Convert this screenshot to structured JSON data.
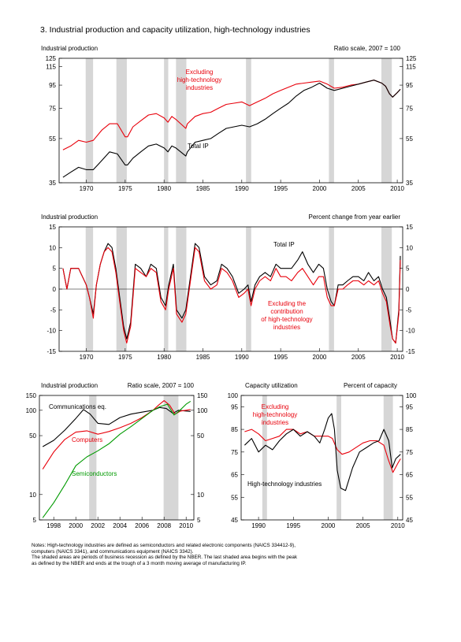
{
  "figure": {
    "title": "3.  Industrial production and capacity utilization, high-technology industries"
  },
  "notes": [
    "Notes:  High-technology industries are defined as semiconductors and related electronic components (NAICS 334412-9),",
    "computers (NAICS 3341), and communications equipment (NAICS 3342).",
    "   The shaded areas are periods of business recession as defined by the NBER. The last shaded area begins with the peak",
    "as defined by the NBER and ends at the trough of a 3 month moving average of manufacturing IP."
  ],
  "recessions": [
    [
      1969.92,
      1970.87
    ],
    [
      1973.87,
      1975.21
    ],
    [
      1980.0,
      1980.54
    ],
    [
      1981.54,
      1982.87
    ],
    [
      1990.54,
      1991.21
    ],
    [
      2001.21,
      2001.87
    ],
    [
      2007.96,
      2009.3
    ]
  ],
  "colors": {
    "red": "#e8000b",
    "black": "#000000",
    "green": "#009a00",
    "shade": "#d6d6d6"
  },
  "chart_data": [
    {
      "type": "line",
      "y_scale": "log",
      "left_label": "Industrial production",
      "right_label": "Ratio scale, 2007 = 100",
      "xlim": [
        1966.5,
        2010.7
      ],
      "ylim": [
        35,
        125
      ],
      "x_ticks": [
        "1970",
        "1975",
        "1980",
        "1985",
        "1990",
        "1995",
        "2000",
        "2005",
        "2010"
      ],
      "y_ticks": [
        "35",
        "55",
        "75",
        "95",
        "115",
        "125"
      ],
      "annotations": [
        "Excluding",
        "high-technology",
        "industries",
        "Total IP"
      ],
      "series": [
        {
          "color": "red",
          "x": [
            1967,
            1968,
            1969,
            1970,
            1970.9,
            1972,
            1973,
            1974,
            1975,
            1975.3,
            1976,
            1977,
            1978,
            1979,
            1980,
            1980.5,
            1981,
            1981.5,
            1982.8,
            1983,
            1984,
            1985,
            1986,
            1987,
            1988,
            1989,
            1990,
            1991,
            1992,
            1993,
            1994,
            1995,
            1996,
            1997,
            1998,
            1999,
            2000,
            2001,
            2001.9,
            2003,
            2004,
            2005,
            2006,
            2007,
            2008,
            2008.5,
            2009,
            2009.4,
            2010,
            2010.4
          ],
          "values": [
            49,
            51,
            54,
            53,
            54,
            60,
            64,
            64,
            56,
            56,
            62,
            66,
            70,
            71,
            68,
            65,
            69,
            67,
            61,
            64,
            69,
            71,
            72,
            75,
            78,
            79,
            80,
            77,
            80,
            83,
            87,
            90,
            93,
            96,
            97,
            98,
            99,
            96,
            92,
            93,
            95,
            96,
            98,
            100,
            97,
            94,
            87,
            84,
            88,
            91
          ]
        },
        {
          "color": "black",
          "x": [
            1967,
            1968,
            1969,
            1970,
            1970.9,
            1972,
            1973,
            1974,
            1975,
            1975.3,
            1976,
            1977,
            1978,
            1979,
            1980,
            1980.5,
            1981,
            1981.5,
            1982.8,
            1983,
            1984,
            1985,
            1986,
            1987,
            1988,
            1989,
            1990,
            1991,
            1992,
            1993,
            1994,
            1995,
            1996,
            1997,
            1998,
            1999,
            2000,
            2001,
            2001.9,
            2003,
            2004,
            2005,
            2006,
            2007,
            2008,
            2008.5,
            2009,
            2009.4,
            2010,
            2010.4
          ],
          "values": [
            37,
            39,
            41,
            40,
            40,
            44,
            48,
            47,
            42,
            42,
            45,
            48,
            51,
            52,
            50,
            48,
            51,
            50,
            46,
            48,
            53,
            54,
            55,
            58,
            61,
            62,
            63,
            62,
            64,
            67,
            71,
            75,
            79,
            85,
            90,
            93,
            97,
            92,
            90,
            92,
            94,
            96,
            98,
            100,
            97,
            94,
            87,
            84,
            88,
            91
          ]
        }
      ]
    },
    {
      "type": "line",
      "left_label": "Industrial production",
      "right_label": "Percent change from year earlier",
      "xlim": [
        1966.5,
        2010.7
      ],
      "ylim": [
        -15,
        15
      ],
      "x_ticks": [
        "1970",
        "1975",
        "1980",
        "1985",
        "1990",
        "1995",
        "2000",
        "2005",
        "2010"
      ],
      "y_ticks": [
        "-15",
        "-10",
        "-5",
        "0",
        "5",
        "10",
        "15"
      ],
      "annotations": [
        "Total IP",
        "Excluding the",
        "contribution",
        "of high-technology",
        "industries"
      ],
      "series": [
        {
          "color": "black",
          "x": [
            1967,
            1967.5,
            1968,
            1969,
            1970,
            1970.4,
            1970.9,
            1971.3,
            1971.8,
            1972.3,
            1972.8,
            1973.3,
            1973.8,
            1974.3,
            1974.8,
            1975.2,
            1975.7,
            1976.3,
            1977,
            1977.7,
            1978.3,
            1979,
            1979.6,
            1980.2,
            1980.6,
            1981.2,
            1981.6,
            1982.3,
            1982.8,
            1983.4,
            1984,
            1984.5,
            1985.2,
            1986,
            1986.8,
            1987.4,
            1988.1,
            1988.8,
            1989.6,
            1990.3,
            1990.8,
            1991.2,
            1991.7,
            1992.3,
            1993,
            1993.7,
            1994.4,
            1995,
            1995.7,
            1996.4,
            1997.2,
            1997.8,
            1998.5,
            1999.2,
            1999.9,
            2000.5,
            2001,
            2001.5,
            2001.9,
            2002.4,
            2003,
            2003.6,
            2004.3,
            2005,
            2005.7,
            2006.3,
            2007,
            2007.6,
            2008.1,
            2008.6,
            2009.1,
            2009.4,
            2009.8,
            2010.2,
            2010.4
          ],
          "values": [
            5,
            0,
            5,
            5,
            1,
            -2,
            -6,
            1,
            6,
            9,
            11,
            10,
            5,
            -2,
            -9,
            -12,
            -8,
            6,
            5,
            3,
            6,
            5,
            -2,
            -4,
            1,
            6,
            -5,
            -7,
            -5,
            3,
            11,
            10,
            3,
            1,
            2,
            6,
            5,
            3,
            -1,
            0,
            1,
            -3,
            1,
            3,
            4,
            3,
            6,
            5,
            5,
            5,
            7,
            9,
            6,
            4,
            6,
            5,
            0,
            -3,
            -4,
            1,
            1,
            2,
            3,
            3,
            2,
            4,
            2,
            3,
            0,
            -2,
            -8,
            -12,
            -13,
            -5,
            8
          ]
        },
        {
          "color": "red",
          "x": [
            1967,
            1967.5,
            1968,
            1969,
            1970,
            1970.4,
            1970.9,
            1971.3,
            1971.8,
            1972.3,
            1972.8,
            1973.3,
            1973.8,
            1974.3,
            1974.8,
            1975.2,
            1975.7,
            1976.3,
            1977,
            1977.7,
            1978.3,
            1979,
            1979.6,
            1980.2,
            1980.6,
            1981.2,
            1981.6,
            1982.3,
            1982.8,
            1983.4,
            1984,
            1984.5,
            1985.2,
            1986,
            1986.8,
            1987.4,
            1988.1,
            1988.8,
            1989.6,
            1990.3,
            1990.8,
            1991.2,
            1991.7,
            1992.3,
            1993,
            1993.7,
            1994.4,
            1995,
            1995.7,
            1996.4,
            1997.2,
            1997.8,
            1998.5,
            1999.2,
            1999.9,
            2000.5,
            2001,
            2001.5,
            2001.9,
            2002.4,
            2003,
            2003.6,
            2004.3,
            2005,
            2005.7,
            2006.3,
            2007,
            2007.6,
            2008.1,
            2008.6,
            2009.1,
            2009.4,
            2009.8,
            2010.2,
            2010.4
          ],
          "values": [
            5,
            0,
            5,
            5,
            1,
            -2,
            -7,
            1,
            6,
            9,
            10,
            9,
            4,
            -3,
            -10,
            -13,
            -9,
            5,
            4,
            3,
            5,
            4,
            -3,
            -5,
            0,
            5,
            -6,
            -8,
            -6,
            2,
            10,
            9,
            2,
            0,
            1,
            5,
            4,
            2,
            -2,
            -1,
            0,
            -4,
            0,
            2,
            3,
            2,
            5,
            3,
            3,
            2,
            4,
            5,
            3,
            1,
            3,
            3,
            -2,
            -4,
            -4,
            0,
            0,
            1,
            2,
            2,
            1,
            2,
            1,
            2,
            -1,
            -3,
            -9,
            -12,
            -13,
            -6,
            7
          ]
        }
      ]
    },
    {
      "type": "line",
      "y_scale": "log",
      "left_label": "Industrial production",
      "right_label": "Ratio scale, 2007 = 100",
      "xlim": [
        1996.7,
        2010.7
      ],
      "ylim": [
        5,
        150
      ],
      "x_ticks": [
        "1998",
        "2000",
        "2002",
        "2004",
        "2006",
        "2008",
        "2010"
      ],
      "y_ticks": [
        "5",
        "10",
        "50",
        "100",
        "150"
      ],
      "annotations": [
        "Communications eq.",
        "Computers",
        "Semiconductors"
      ],
      "series": [
        {
          "color": "black",
          "x": [
            1997,
            1998,
            1999,
            2000,
            2000.7,
            2001.3,
            2002,
            2003,
            2004,
            2005,
            2006,
            2007,
            2007.6,
            2008.2,
            2008.8,
            2009.3,
            2010,
            2010.4
          ],
          "values": [
            37,
            44,
            58,
            80,
            102,
            90,
            70,
            68,
            82,
            90,
            95,
            100,
            108,
            105,
            92,
            100,
            98,
            97
          ]
        },
        {
          "color": "red",
          "x": [
            1997,
            1998,
            1999,
            2000,
            2001,
            2002,
            2003,
            2004,
            2005,
            2006,
            2007,
            2007.5,
            2008,
            2008.5,
            2009,
            2009.5,
            2010,
            2010.4
          ],
          "values": [
            20,
            32,
            45,
            55,
            57,
            52,
            56,
            62,
            70,
            82,
            100,
            115,
            130,
            115,
            90,
            98,
            100,
            102
          ]
        },
        {
          "color": "green",
          "x": [
            1997,
            1998,
            1999,
            2000,
            2001,
            2002,
            2003,
            2004,
            2005,
            2006,
            2007,
            2007.6,
            2008.3,
            2008.9,
            2009.3,
            2010,
            2010.4
          ],
          "values": [
            5.3,
            8,
            13,
            22,
            28,
            33,
            40,
            52,
            64,
            80,
            100,
            110,
            118,
            88,
            96,
            118,
            128
          ]
        }
      ]
    },
    {
      "type": "line",
      "left_label": "Capacity utilization",
      "right_label": "Percent of capacity",
      "xlim": [
        1987.5,
        2010.7
      ],
      "ylim": [
        45,
        100
      ],
      "x_ticks": [
        "1990",
        "1995",
        "2000",
        "2005",
        "2010"
      ],
      "y_ticks": [
        "45",
        "55",
        "65",
        "75",
        "85",
        "95",
        "100"
      ],
      "annotations": [
        "Excluding",
        "high-technology",
        "industries",
        "High-technology industries"
      ],
      "series": [
        {
          "color": "red",
          "x": [
            1988,
            1989,
            1990,
            1991,
            1992,
            1993,
            1994,
            1995,
            1996,
            1997,
            1998,
            1999,
            2000,
            2000.6,
            2001.3,
            2002,
            2003,
            2004,
            2005,
            2006,
            2007,
            2008,
            2008.6,
            2009.3,
            2010,
            2010.4
          ],
          "values": [
            84,
            85,
            83,
            80,
            81,
            82,
            85,
            85,
            83,
            84,
            82,
            82,
            82,
            81,
            76,
            74,
            75,
            77,
            79,
            80,
            80,
            78,
            72,
            66,
            70,
            72
          ]
        },
        {
          "color": "black",
          "x": [
            1988,
            1989,
            1990,
            1991,
            1992,
            1993,
            1994,
            1995,
            1996,
            1997,
            1998,
            1998.8,
            1999.5,
            2000,
            2000.5,
            2000.9,
            2001.3,
            2001.8,
            2002.5,
            2003.5,
            2004.5,
            2005.5,
            2006.5,
            2007.3,
            2008,
            2008.7,
            2009.2,
            2009.7,
            2010.4
          ],
          "values": [
            78,
            81,
            75,
            78,
            76,
            80,
            83,
            85,
            82,
            84,
            82,
            79,
            85,
            90,
            92,
            85,
            67,
            59,
            58,
            68,
            75,
            77,
            79,
            80,
            85,
            80,
            68,
            72,
            74
          ]
        }
      ]
    }
  ]
}
